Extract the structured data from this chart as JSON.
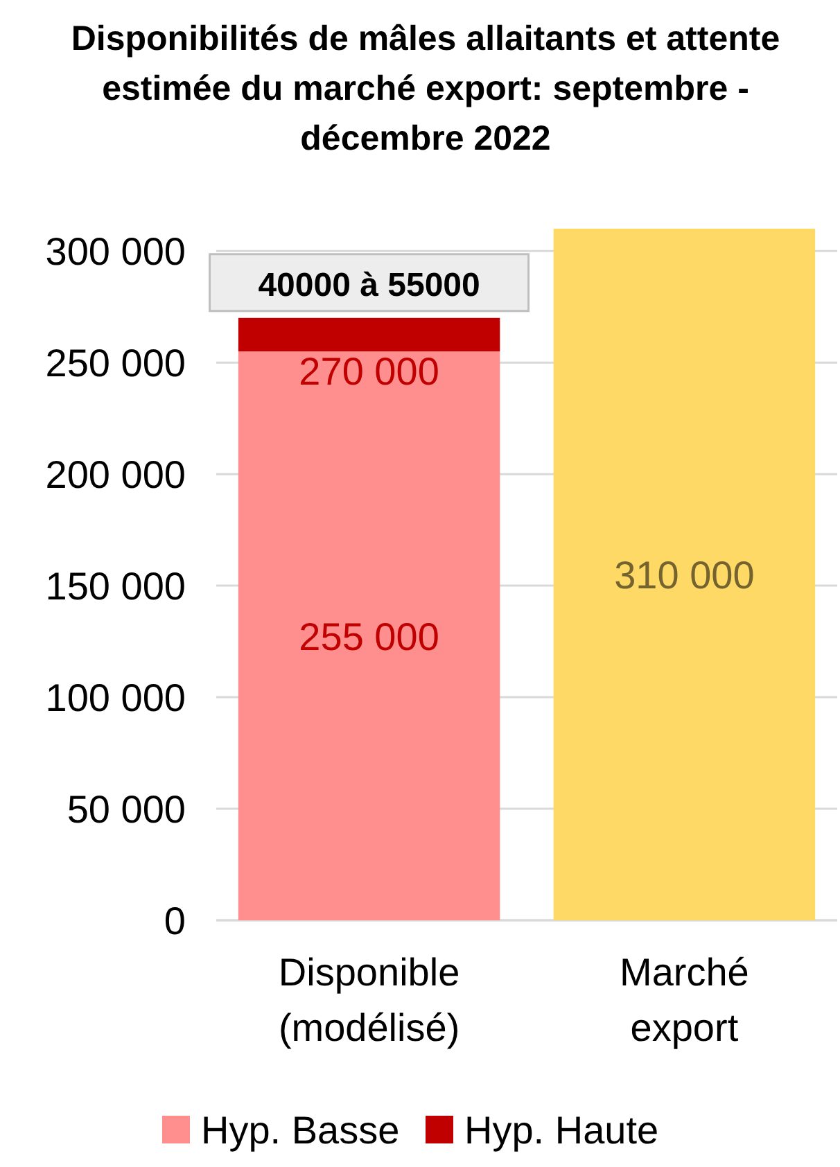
{
  "chart_data": {
    "type": "bar",
    "title": "Disponibilités de mâles allaitants et attente estimée du marché export: septembre - décembre 2022",
    "categories": [
      "Disponible (modélisé)",
      "Marché export"
    ],
    "stacked": true,
    "series": [
      {
        "name": "Hyp. Basse",
        "color": "#ff8f8f",
        "values": [
          255000,
          null
        ],
        "value_labels": [
          "255 000",
          null
        ]
      },
      {
        "name": "Hyp. Haute",
        "color": "#c00000",
        "values": [
          15000,
          null
        ]
      },
      {
        "color": "#ffd966",
        "values": [
          null,
          310000
        ],
        "value_labels": [
          null,
          "310 000"
        ]
      }
    ],
    "ylim": [
      0,
      310000
    ],
    "yticks": [
      {
        "value": 0,
        "label": "0"
      },
      {
        "value": 50000,
        "label": "50 000"
      },
      {
        "value": 100000,
        "label": "100 000"
      },
      {
        "value": 150000,
        "label": "150 000"
      },
      {
        "value": 200000,
        "label": "200 000"
      },
      {
        "value": 250000,
        "label": "250 000"
      },
      {
        "value": 300000,
        "label": "300 000"
      }
    ],
    "totals": [
      "270 000",
      null
    ],
    "grid": "y",
    "legend": "bottom",
    "annotations": [
      {
        "text": "40000 à 55000",
        "x": "Disponible (modélisé)",
        "y": 270000
      }
    ]
  }
}
